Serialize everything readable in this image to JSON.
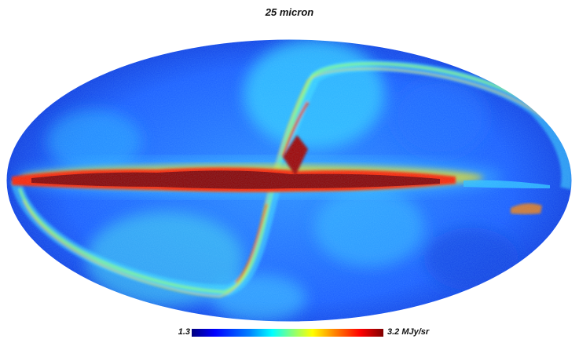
{
  "title": "25 micron",
  "colorbar": {
    "min_label": "1.3",
    "max_label": "3.2 MJy/sr",
    "colormap": [
      "#00007f",
      "#0000ff",
      "#0080ff",
      "#00ffff",
      "#80ff80",
      "#ffff00",
      "#ff8000",
      "#ff0000",
      "#800000"
    ]
  },
  "map": {
    "projection": "mollweide",
    "background": "#0a3cd8"
  }
}
